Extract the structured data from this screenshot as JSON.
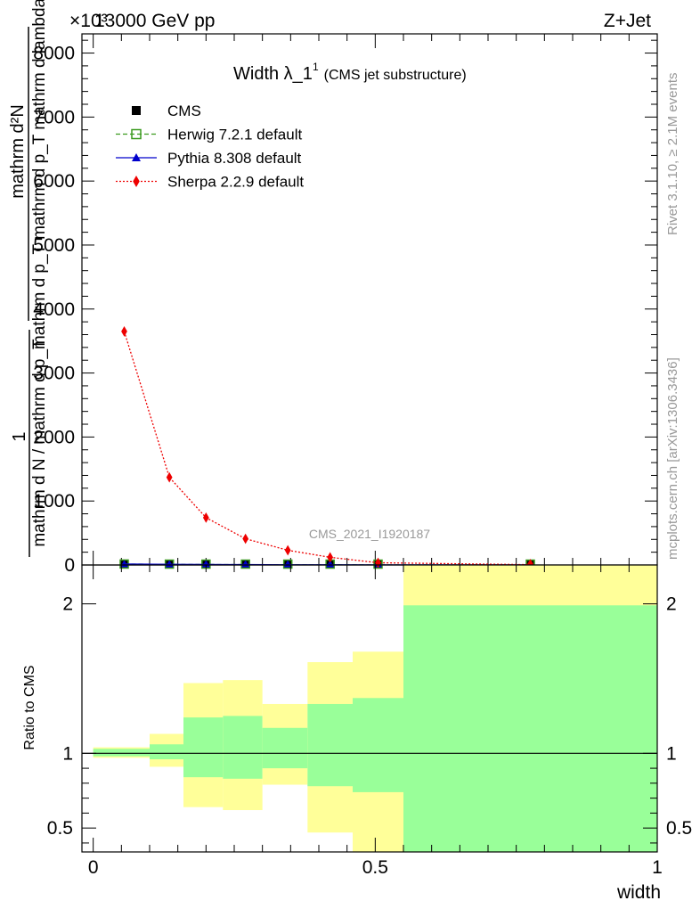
{
  "header": {
    "left": "13000 GeV pp",
    "right": "Z+Jet",
    "exponent": "×10³"
  },
  "side_labels": {
    "rivet": "Rivet 3.1.10, ≥ 2.1M events",
    "mcplots": "mcplots.cern.ch [arXiv:1306.3436]"
  },
  "watermark": "CMS_2021_I1920187",
  "chart_data": [
    {
      "type": "line",
      "title_main": "Width λ_1",
      "title_sup": "1",
      "title_paren": "(CMS jet substructure)",
      "ylabel_num": "mathrm d²N",
      "ylabel_den": "mathrm d p_T mathrm d p_T mathrm d lambda",
      "ylabel_prefix_num": "1",
      "ylabel_prefix_den": "mathrm d N / mathrm d p_T",
      "ylim": [
        0,
        8300
      ],
      "xlim": [
        -0.02,
        1.0
      ],
      "y_ticks": [
        0,
        1000,
        2000,
        3000,
        4000,
        5000,
        6000,
        7000,
        8000
      ],
      "y_tick_labels": [
        "0",
        "1000",
        "2000",
        "3000",
        "4000",
        "5000",
        "6000",
        "7000",
        "8000"
      ],
      "legend_position": "top-left",
      "series": [
        {
          "name": "CMS",
          "color": "#000000",
          "marker": "square",
          "x": [
            0.055,
            0.135,
            0.2,
            0.27,
            0.345,
            0.42,
            0.505,
            0.775
          ],
          "y": [
            15,
            10,
            8,
            6,
            4,
            3,
            2,
            1
          ]
        },
        {
          "name": "Herwig 7.2.1 default",
          "color": "#3a9a1e",
          "marker": "open-square",
          "x": [
            0.055,
            0.135,
            0.2,
            0.27,
            0.345,
            0.42,
            0.505,
            0.775
          ],
          "y": [
            15,
            10,
            8,
            6,
            4,
            3,
            2,
            1
          ]
        },
        {
          "name": "Pythia 8.308 default",
          "color": "#0000cc",
          "marker": "triangle",
          "x": [
            0.055,
            0.135,
            0.2,
            0.27,
            0.345,
            0.42,
            0.505,
            0.775
          ],
          "y": [
            15,
            10,
            8,
            6,
            4,
            3,
            2,
            1
          ]
        },
        {
          "name": "Sherpa 2.2.9 default",
          "color": "#ee0000",
          "marker": "diamond",
          "x": [
            0.055,
            0.135,
            0.2,
            0.27,
            0.345,
            0.42,
            0.505,
            0.775
          ],
          "y": [
            3650,
            1370,
            740,
            410,
            230,
            120,
            35,
            5
          ]
        }
      ]
    },
    {
      "type": "area",
      "ylabel": "Ratio to CMS",
      "xlabel": "width",
      "ylim": [
        0.34,
        2.26
      ],
      "xlim": [
        -0.02,
        1.0
      ],
      "y_ticks": [
        0.5,
        1,
        2
      ],
      "y_tick_labels": [
        "0.5",
        "1",
        "2"
      ],
      "x_ticks": [
        0,
        0.5,
        1
      ],
      "x_tick_labels": [
        "0",
        "0.5",
        "1"
      ],
      "reference_line": 1,
      "bins": [
        {
          "x0": 0.0,
          "x1": 0.1,
          "stat_lo": 0.98,
          "stat_hi": 1.03,
          "tot_lo": 0.97,
          "tot_hi": 1.04
        },
        {
          "x0": 0.1,
          "x1": 0.16,
          "stat_lo": 0.96,
          "stat_hi": 1.06,
          "tot_lo": 0.91,
          "tot_hi": 1.13
        },
        {
          "x0": 0.16,
          "x1": 0.23,
          "stat_lo": 0.84,
          "stat_hi": 1.24,
          "tot_lo": 0.64,
          "tot_hi": 1.47
        },
        {
          "x0": 0.23,
          "x1": 0.3,
          "stat_lo": 0.83,
          "stat_hi": 1.25,
          "tot_lo": 0.62,
          "tot_hi": 1.49
        },
        {
          "x0": 0.3,
          "x1": 0.38,
          "stat_lo": 0.9,
          "stat_hi": 1.17,
          "tot_lo": 0.79,
          "tot_hi": 1.33
        },
        {
          "x0": 0.38,
          "x1": 0.46,
          "stat_lo": 0.78,
          "stat_hi": 1.33,
          "tot_lo": 0.47,
          "tot_hi": 1.61
        },
        {
          "x0": 0.46,
          "x1": 0.55,
          "stat_lo": 0.74,
          "stat_hi": 1.37,
          "tot_lo": 0.34,
          "tot_hi": 1.68
        },
        {
          "x0": 0.55,
          "x1": 1.0,
          "stat_lo": 0.34,
          "stat_hi": 1.99,
          "tot_lo": 0.34,
          "tot_hi": 2.26
        }
      ],
      "band_colors": {
        "stat": "#99ff99",
        "total": "#ffff99"
      }
    }
  ]
}
